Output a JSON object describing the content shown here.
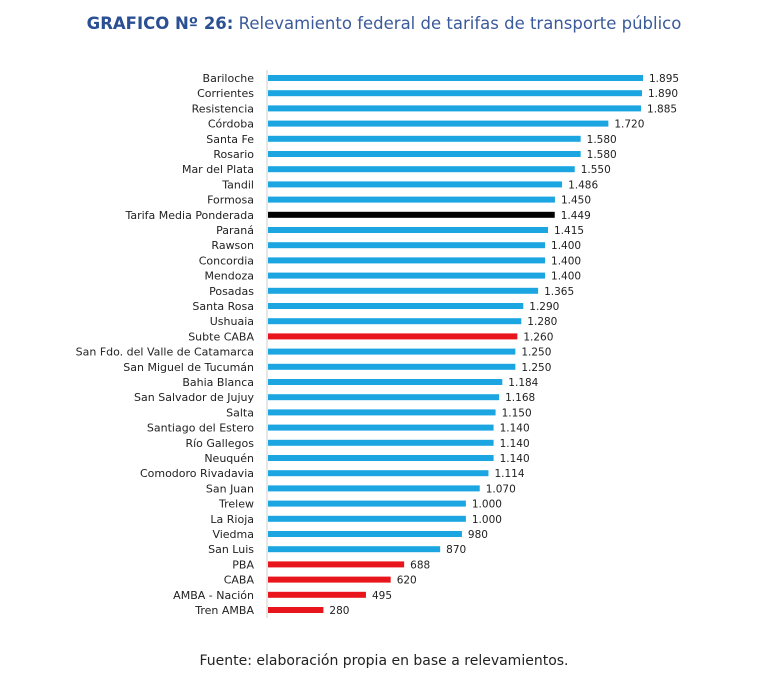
{
  "chart_data": {
    "type": "bar",
    "orientation": "horizontal",
    "title_prefix": "GRAFICO Nº 26:",
    "title": "Relevamiento federal de tarifas de transporte público",
    "source": "Fuente: elaboración propia en base a relevamientos.",
    "xlim": [
      0,
      1895
    ],
    "colors": {
      "default": "#1ba6e1",
      "average": "#000000",
      "highlight": "#e8161c"
    },
    "categories": [
      "Bariloche",
      "Corrientes",
      "Resistencia",
      "Córdoba",
      "Santa Fe",
      "Rosario",
      "Mar del Plata",
      "Tandil",
      "Formosa",
      "Tarifa Media Ponderada",
      "Paraná",
      "Rawson",
      "Concordia",
      "Mendoza",
      "Posadas",
      "Santa Rosa",
      "Ushuaia",
      "Subte CABA",
      "San Fdo. del Valle de Catamarca",
      "San Miguel de Tucumán",
      "Bahia Blanca",
      "San Salvador de Jujuy",
      "Salta",
      "Santiago del Estero",
      "Río Gallegos",
      "Neuquén",
      "Comodoro Rivadavia",
      "San Juan",
      "Trelew",
      "La Rioja",
      "Viedma",
      "San Luis",
      "PBA",
      "CABA",
      "AMBA - Nación",
      "Tren AMBA"
    ],
    "values": [
      1895,
      1890,
      1885,
      1720,
      1580,
      1580,
      1550,
      1486,
      1450,
      1449,
      1415,
      1400,
      1400,
      1400,
      1365,
      1290,
      1280,
      1260,
      1250,
      1250,
      1184,
      1168,
      1150,
      1140,
      1140,
      1140,
      1114,
      1070,
      1000,
      1000,
      980,
      870,
      688,
      620,
      495,
      280
    ],
    "value_labels": [
      "1.895",
      "1.890",
      "1.885",
      "1.720",
      "1.580",
      "1.580",
      "1.550",
      "1.486",
      "1.450",
      "1.449",
      "1.415",
      "1.400",
      "1.400",
      "1.400",
      "1.365",
      "1.290",
      "1.280",
      "1.260",
      "1.250",
      "1.250",
      "1.184",
      "1.168",
      "1.150",
      "1.140",
      "1.140",
      "1.140",
      "1.114",
      "1.070",
      "1.000",
      "1.000",
      "980",
      "870",
      "688",
      "620",
      "495",
      "280"
    ],
    "bar_types": [
      "default",
      "default",
      "default",
      "default",
      "default",
      "default",
      "default",
      "default",
      "default",
      "average",
      "default",
      "default",
      "default",
      "default",
      "default",
      "default",
      "default",
      "highlight",
      "default",
      "default",
      "default",
      "default",
      "default",
      "default",
      "default",
      "default",
      "default",
      "default",
      "default",
      "default",
      "default",
      "default",
      "highlight",
      "highlight",
      "highlight",
      "highlight"
    ]
  }
}
